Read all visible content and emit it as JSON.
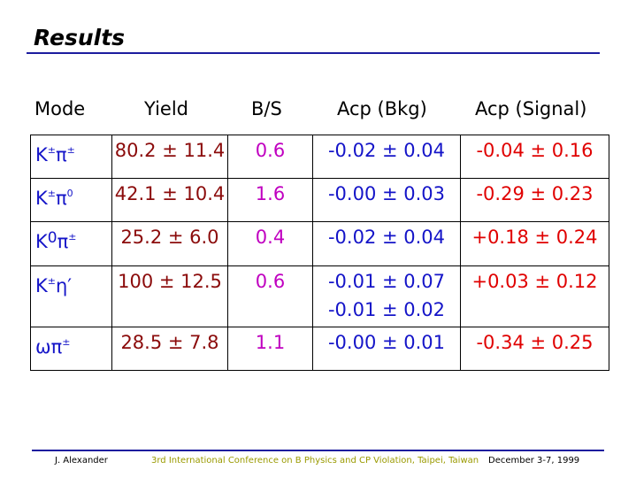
{
  "title": "Results",
  "headers": {
    "mode": "Mode",
    "yield": "Yield",
    "bs": "B/S",
    "acp_bkg": "Acp (Bkg)",
    "acp_signal": "Acp (Signal)"
  },
  "rows": [
    {
      "mode_base": "K",
      "mode_sup1": "±",
      "mode_mid": "π",
      "mode_sup2": "±",
      "yield": "80.2 ± 11.4",
      "bs": "0.6",
      "acp_bkg": "-0.02 ± 0.04",
      "acp_bkg2": "",
      "acp_signal": "-0.04 ± 0.16"
    },
    {
      "mode_base": "K",
      "mode_sup1": "±",
      "mode_mid": "π",
      "mode_sup2": "0",
      "yield": "42.1 ± 10.4",
      "bs": "1.6",
      "acp_bkg": "-0.00 ± 0.03",
      "acp_bkg2": "",
      "acp_signal": "-0.29 ± 0.23"
    },
    {
      "mode_base": "K",
      "mode_sup1": "0",
      "mode_mid": "π",
      "mode_sup2": "±",
      "yield": "25.2 ± 6.0",
      "bs": "0.4",
      "acp_bkg": "-0.02 ± 0.04",
      "acp_bkg2": "",
      "acp_signal": "+0.18 ± 0.24"
    },
    {
      "mode_base": "K",
      "mode_sup1": "±",
      "mode_mid": "η′",
      "mode_sup2": "",
      "yield": "100 ± 12.5",
      "bs": "0.6",
      "acp_bkg": "-0.01 ± 0.07",
      "acp_bkg2": "-0.01 ± 0.02",
      "acp_signal": "+0.03 ± 0.12"
    },
    {
      "mode_base": "ω",
      "mode_sup1": "",
      "mode_mid": "π",
      "mode_sup2": "±",
      "yield": "28.5 ± 7.8",
      "bs": "1.1",
      "acp_bkg": "-0.00 ± 0.01",
      "acp_bkg2": "",
      "acp_signal": "-0.34 ± 0.25"
    }
  ],
  "footer": {
    "author": "J. Alexander",
    "conference": "3rd International Conference on B Physics and CP Violation, Taipei, Taiwan",
    "date": "December 3-7, 1999"
  },
  "colors": {
    "rule": "#1c1c9e",
    "mode": "#1414c8",
    "yield": "#8b0b0b",
    "bs": "#c000c0",
    "acp_bkg": "#1414c8",
    "acp_signal": "#e00000"
  }
}
